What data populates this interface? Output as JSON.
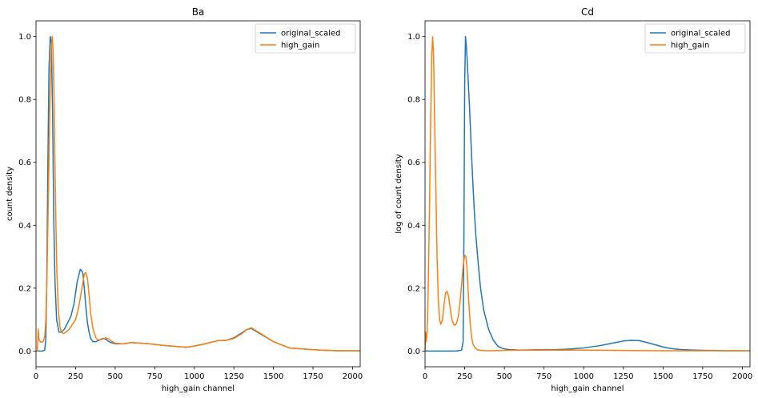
{
  "chart_data": [
    {
      "type": "line",
      "title": "Ba",
      "xlabel": "high_gain channel",
      "ylabel": "count density",
      "xlim": [
        0,
        2048
      ],
      "ylim": [
        -0.05,
        1.05
      ],
      "xticks": [
        0,
        250,
        500,
        750,
        1000,
        1250,
        1500,
        1750,
        2000
      ],
      "yticks": [
        0.0,
        0.2,
        0.4,
        0.6,
        0.8,
        1.0
      ],
      "legend": "top-right",
      "series": [
        {
          "name": "original_scaled",
          "color": "#1f77b4",
          "x": [
            0,
            40,
            55,
            62,
            68,
            75,
            82,
            90,
            97,
            105,
            112,
            120,
            130,
            145,
            160,
            180,
            200,
            220,
            240,
            260,
            280,
            295,
            305,
            315,
            325,
            335,
            345,
            360,
            380,
            400,
            420,
            440,
            460,
            480,
            500,
            550,
            600,
            700,
            800,
            900,
            950,
            1000,
            1050,
            1100,
            1150,
            1200,
            1250,
            1300,
            1330,
            1360,
            1400,
            1450,
            1500,
            1550,
            1600,
            1700,
            1800,
            1900,
            2048
          ],
          "y": [
            0.0,
            0.0,
            0.003,
            0.04,
            0.22,
            0.6,
            0.9,
            1.0,
            0.98,
            0.75,
            0.42,
            0.22,
            0.1,
            0.06,
            0.06,
            0.07,
            0.09,
            0.11,
            0.15,
            0.22,
            0.26,
            0.25,
            0.2,
            0.14,
            0.09,
            0.06,
            0.04,
            0.03,
            0.03,
            0.035,
            0.04,
            0.038,
            0.03,
            0.026,
            0.023,
            0.023,
            0.027,
            0.024,
            0.018,
            0.014,
            0.012,
            0.016,
            0.021,
            0.027,
            0.033,
            0.034,
            0.042,
            0.058,
            0.068,
            0.072,
            0.06,
            0.045,
            0.03,
            0.02,
            0.01,
            0.006,
            0.003,
            0.001,
            0.001
          ]
        },
        {
          "name": "high_gain",
          "color": "#ff7f0e",
          "x": [
            0,
            8,
            14,
            18,
            25,
            35,
            45,
            55,
            62,
            70,
            80,
            90,
            97,
            103,
            108,
            114,
            120,
            126,
            132,
            140,
            150,
            160,
            175,
            190,
            210,
            230,
            250,
            270,
            290,
            305,
            315,
            325,
            335,
            345,
            360,
            380,
            400,
            420,
            440,
            460,
            480,
            500,
            550,
            600,
            700,
            800,
            900,
            950,
            1000,
            1050,
            1100,
            1150,
            1200,
            1250,
            1300,
            1330,
            1360,
            1400,
            1450,
            1500,
            1550,
            1600,
            1700,
            1800,
            1900,
            2048
          ],
          "y": [
            0.0,
            0.0,
            0.07,
            0.04,
            0.03,
            0.028,
            0.03,
            0.045,
            0.1,
            0.25,
            0.55,
            0.85,
            0.97,
            1.0,
            0.95,
            0.8,
            0.58,
            0.4,
            0.25,
            0.14,
            0.08,
            0.06,
            0.055,
            0.06,
            0.07,
            0.085,
            0.1,
            0.14,
            0.2,
            0.245,
            0.25,
            0.23,
            0.18,
            0.12,
            0.07,
            0.04,
            0.035,
            0.038,
            0.042,
            0.038,
            0.03,
            0.025,
            0.023,
            0.027,
            0.024,
            0.018,
            0.014,
            0.012,
            0.016,
            0.021,
            0.027,
            0.033,
            0.034,
            0.04,
            0.055,
            0.068,
            0.074,
            0.062,
            0.046,
            0.03,
            0.02,
            0.01,
            0.006,
            0.003,
            0.001,
            0.001
          ]
        }
      ]
    },
    {
      "type": "line",
      "title": "Cd",
      "xlabel": "high_gain channel",
      "ylabel": "log of count density",
      "xlim": [
        0,
        2048
      ],
      "ylim": [
        -0.05,
        1.05
      ],
      "xticks": [
        0,
        250,
        500,
        750,
        1000,
        1250,
        1500,
        1750,
        2000
      ],
      "yticks": [
        0.0,
        0.2,
        0.4,
        0.6,
        0.8,
        1.0
      ],
      "legend": "top-right",
      "series": [
        {
          "name": "original_scaled",
          "color": "#1f77b4",
          "x": [
            0,
            200,
            230,
            240,
            245,
            250,
            255,
            262,
            270,
            280,
            290,
            300,
            310,
            320,
            335,
            350,
            370,
            400,
            430,
            460,
            490,
            520,
            600,
            700,
            800,
            900,
            1000,
            1100,
            1200,
            1250,
            1300,
            1350,
            1400,
            1450,
            1500,
            1550,
            1600,
            1700,
            1800,
            1900,
            2048
          ],
          "y": [
            0.0,
            0.0,
            0.003,
            0.03,
            0.35,
            0.85,
            1.0,
            0.96,
            0.88,
            0.78,
            0.66,
            0.55,
            0.45,
            0.37,
            0.28,
            0.2,
            0.13,
            0.07,
            0.035,
            0.015,
            0.008,
            0.005,
            0.003,
            0.004,
            0.004,
            0.006,
            0.01,
            0.017,
            0.027,
            0.032,
            0.034,
            0.033,
            0.027,
            0.02,
            0.013,
            0.008,
            0.005,
            0.003,
            0.002,
            0.001,
            0.001
          ]
        },
        {
          "name": "high_gain",
          "color": "#ff7f0e",
          "x": [
            0,
            4,
            8,
            12,
            16,
            20,
            28,
            36,
            42,
            48,
            54,
            60,
            68,
            76,
            84,
            92,
            100,
            110,
            120,
            130,
            140,
            150,
            160,
            170,
            180,
            190,
            200,
            210,
            220,
            230,
            240,
            250,
            258,
            265,
            272,
            280,
            290,
            300,
            315,
            330,
            350,
            400,
            500,
            700,
            1000,
            1200,
            1500,
            1800,
            2048
          ],
          "y": [
            0.0,
            0.06,
            0.03,
            0.05,
            0.1,
            0.2,
            0.45,
            0.75,
            0.93,
            1.0,
            0.94,
            0.75,
            0.52,
            0.3,
            0.16,
            0.1,
            0.085,
            0.1,
            0.15,
            0.185,
            0.19,
            0.17,
            0.13,
            0.1,
            0.085,
            0.082,
            0.09,
            0.11,
            0.15,
            0.21,
            0.27,
            0.305,
            0.3,
            0.26,
            0.19,
            0.12,
            0.06,
            0.025,
            0.01,
            0.004,
            0.002,
            0.001,
            0.002,
            0.003,
            0.003,
            0.002,
            0.001,
            0.001,
            0.001
          ]
        }
      ]
    }
  ]
}
